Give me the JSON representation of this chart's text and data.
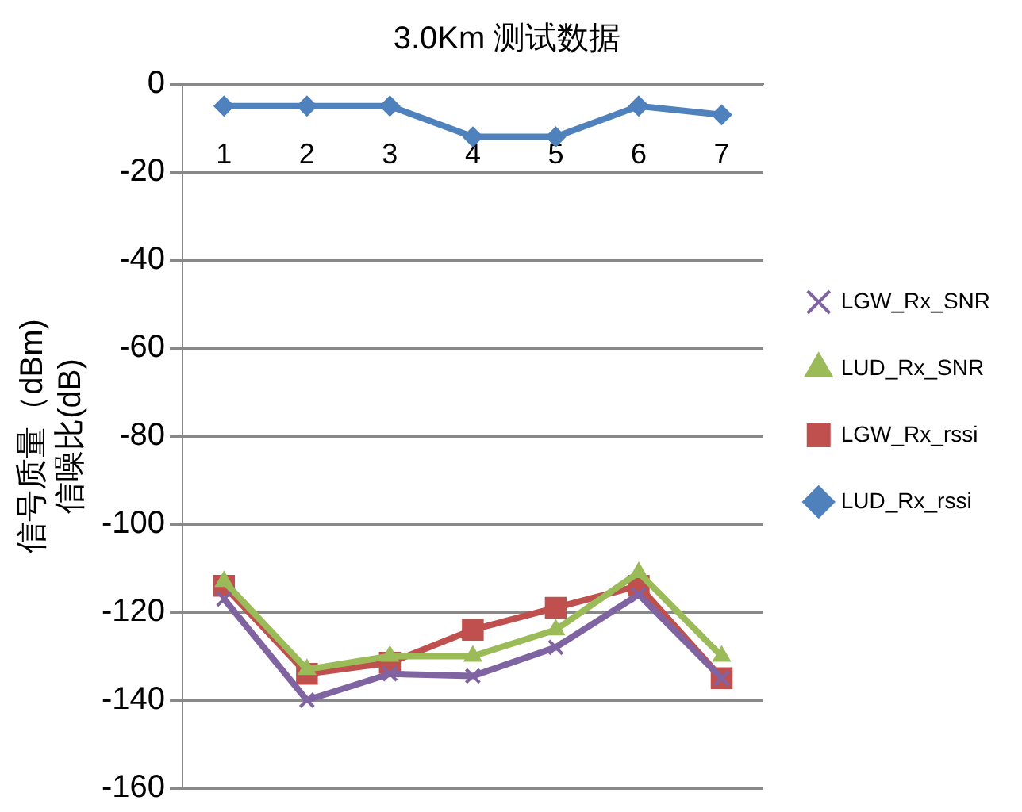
{
  "chart_data": {
    "type": "line",
    "title": "3.0Km 测试数据",
    "ylabel": "信号质量（dBm)\n信噪比(dB)",
    "categories": [
      "1",
      "2",
      "3",
      "4",
      "5",
      "6",
      "7"
    ],
    "series": [
      {
        "name": "LGW_Rx_SNR",
        "color": "#8064a2",
        "marker": "cross",
        "values": [
          -117,
          -140,
          -134,
          -134.5,
          -128,
          -116,
          -135
        ]
      },
      {
        "name": "LUD_Rx_SNR",
        "color": "#9bbb59",
        "marker": "triangle",
        "values": [
          -113,
          -133,
          -130,
          -130,
          -124,
          -111,
          -130
        ]
      },
      {
        "name": "LGW_Rx_rssi",
        "color": "#c0504d",
        "marker": "square",
        "values": [
          -114,
          -134,
          -131.5,
          -124,
          -119,
          -114,
          -135
        ]
      },
      {
        "name": "LUD_Rx_rssi",
        "color": "#4f81bd",
        "marker": "diamond",
        "values": [
          -5,
          -5,
          -5,
          -12,
          -12,
          -5,
          -7
        ]
      }
    ],
    "ylim": [
      -160,
      0
    ],
    "yticks": [
      -160,
      -140,
      -120,
      -100,
      -80,
      -60,
      -40,
      -20,
      0
    ],
    "grid": "y",
    "legend": "right",
    "line_style": "solid"
  }
}
